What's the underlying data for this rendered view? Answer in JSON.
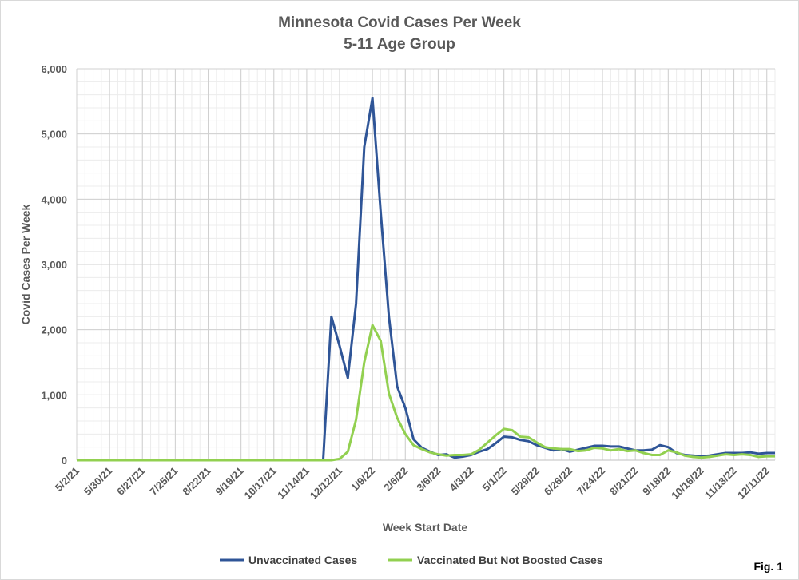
{
  "chart_data": {
    "type": "line",
    "title": "Minnesota Covid Cases Per Week",
    "subtitle": "5-11 Age Group",
    "y_label": "Covid Cases Per Week",
    "x_label": "Week Start Date",
    "annotation": "Fig. 1",
    "ylim": [
      0,
      6000
    ],
    "yticks": [
      0,
      {
        "value": 1000,
        "label": "1,000"
      },
      {
        "value": 2000,
        "label": "2,000"
      },
      {
        "value": 3000,
        "label": "3,000"
      },
      {
        "value": 4000,
        "label": "4,000"
      },
      {
        "value": 5000,
        "label": "5,000"
      },
      {
        "value": 6000,
        "label": "6,000"
      }
    ],
    "grid": true,
    "legend": "bottom",
    "categories": [
      "5/2/21",
      null,
      null,
      null,
      "5/30/21",
      null,
      null,
      null,
      "6/27/21",
      null,
      null,
      null,
      "7/25/21",
      null,
      null,
      null,
      "8/22/21",
      null,
      null,
      null,
      "9/19/21",
      null,
      null,
      null,
      "10/17/21",
      null,
      null,
      null,
      "11/14/21",
      null,
      null,
      null,
      "12/12/21",
      null,
      null,
      null,
      "1/9/22",
      null,
      null,
      null,
      "2/6/22",
      null,
      null,
      null,
      "3/6/22",
      null,
      null,
      null,
      "4/3/22",
      null,
      null,
      null,
      "5/1/22",
      null,
      null,
      null,
      "5/29/22",
      null,
      null,
      null,
      "6/26/22",
      null,
      null,
      null,
      "7/24/22",
      null,
      null,
      null,
      "8/21/22",
      null,
      null,
      null,
      "9/18/22",
      null,
      null,
      null,
      "10/16/22",
      null,
      null,
      null,
      "11/13/22",
      null,
      null,
      null,
      "12/11/22",
      null
    ],
    "series": [
      {
        "name": "Unvaccinated Cases",
        "color": "#2f5597",
        "values": [
          0,
          0,
          0,
          0,
          0,
          0,
          0,
          0,
          0,
          0,
          0,
          0,
          0,
          0,
          0,
          0,
          0,
          0,
          0,
          0,
          0,
          0,
          0,
          0,
          0,
          0,
          0,
          0,
          0,
          0,
          0,
          2200,
          1750,
          1260,
          2400,
          4800,
          5550,
          3800,
          2200,
          1130,
          800,
          320,
          190,
          130,
          80,
          90,
          40,
          55,
          80,
          130,
          170,
          260,
          360,
          350,
          310,
          290,
          230,
          190,
          150,
          170,
          130,
          160,
          190,
          220,
          220,
          210,
          210,
          180,
          150,
          150,
          160,
          230,
          200,
          110,
          80,
          70,
          60,
          70,
          90,
          110,
          110,
          110,
          120,
          100,
          110,
          110
        ]
      },
      {
        "name": "Vaccinated But Not Boosted Cases",
        "color": "#92d050",
        "values": [
          0,
          0,
          0,
          0,
          0,
          0,
          0,
          0,
          0,
          0,
          0,
          0,
          0,
          0,
          0,
          0,
          0,
          0,
          0,
          0,
          0,
          0,
          0,
          0,
          0,
          0,
          0,
          0,
          0,
          0,
          0,
          0,
          20,
          130,
          620,
          1500,
          2070,
          1830,
          1020,
          650,
          400,
          230,
          170,
          120,
          90,
          70,
          80,
          80,
          90,
          160,
          270,
          380,
          480,
          460,
          360,
          350,
          270,
          200,
          180,
          170,
          170,
          140,
          150,
          190,
          180,
          150,
          170,
          140,
          150,
          110,
          80,
          80,
          150,
          120,
          70,
          50,
          40,
          50,
          70,
          90,
          80,
          90,
          80,
          50,
          60,
          60
        ]
      }
    ]
  }
}
